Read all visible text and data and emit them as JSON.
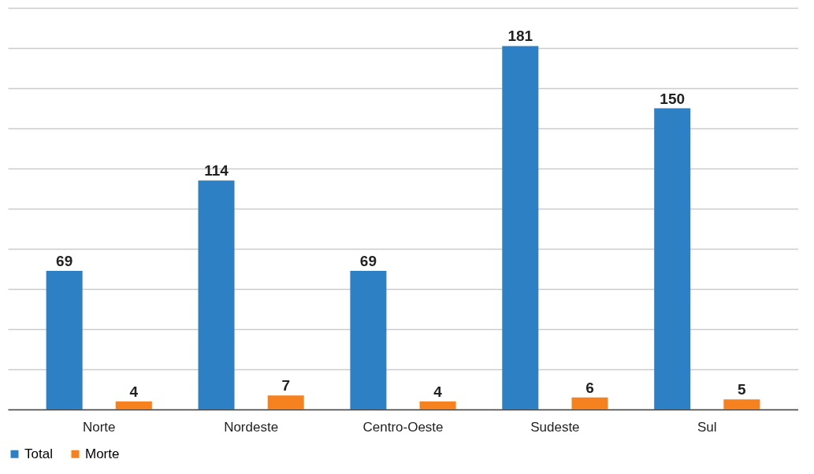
{
  "chart_data": {
    "type": "bar",
    "categories": [
      "Norte",
      "Nordeste",
      "Centro-Oeste",
      "Sudeste",
      "Sul"
    ],
    "series": [
      {
        "name": "Total",
        "color": "#2e80c4",
        "values": [
          69,
          114,
          69,
          181,
          150
        ]
      },
      {
        "name": "Morte",
        "color": "#f5821f",
        "values": [
          4,
          7,
          4,
          6,
          5
        ]
      }
    ],
    "ylim": [
      0,
      200
    ],
    "yticks": [
      {
        "value": 0,
        "label": null
      },
      {
        "value": 20,
        "label": null
      },
      {
        "value": 40,
        "label": null
      },
      {
        "value": 60,
        "label": null
      },
      {
        "value": 80,
        "label": null
      },
      {
        "value": 100,
        "label": null
      },
      {
        "value": 120,
        "label": null
      },
      {
        "value": 140,
        "label": null
      },
      {
        "value": 160,
        "label": null
      },
      {
        "value": 180,
        "label": null
      },
      {
        "value": 200,
        "label": null
      }
    ],
    "tick_labels": "x",
    "grid": "y",
    "legend": "bottom",
    "data_labels": true
  }
}
